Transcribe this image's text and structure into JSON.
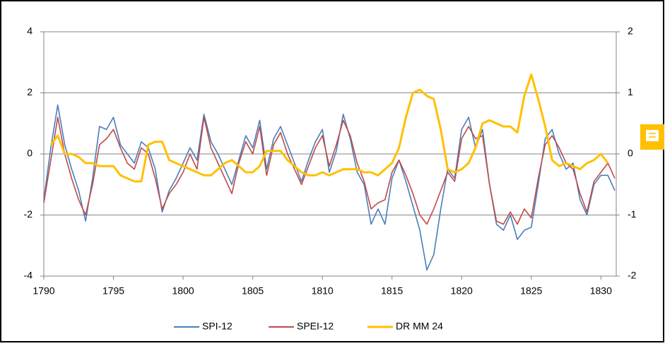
{
  "chart_data": {
    "type": "line",
    "x": [
      1790,
      1790.5,
      1791,
      1791.5,
      1792,
      1792.5,
      1793,
      1793.5,
      1794,
      1794.5,
      1795,
      1795.5,
      1796,
      1796.5,
      1797,
      1797.5,
      1798,
      1798.5,
      1799,
      1799.5,
      1800,
      1800.5,
      1801,
      1801.5,
      1802,
      1802.5,
      1803,
      1803.5,
      1804,
      1804.5,
      1805,
      1805.5,
      1806,
      1806.5,
      1807,
      1807.5,
      1808,
      1808.5,
      1809,
      1809.5,
      1810,
      1810.5,
      1811,
      1811.5,
      1812,
      1812.5,
      1813,
      1813.5,
      1814,
      1814.5,
      1815,
      1815.5,
      1816,
      1816.5,
      1817,
      1817.5,
      1818,
      1818.5,
      1819,
      1819.5,
      1820,
      1820.5,
      1821,
      1821.5,
      1822,
      1822.5,
      1823,
      1823.5,
      1824,
      1824.5,
      1825,
      1825.5,
      1826,
      1826.5,
      1827,
      1827.5,
      1828,
      1828.5,
      1829,
      1829.5,
      1830,
      1830.5,
      1831
    ],
    "series": [
      {
        "name": "SPI-12",
        "color": "#4a7ebb",
        "values": [
          -1.5,
          0.2,
          1.6,
          0.3,
          -0.5,
          -1.2,
          -2.2,
          -0.8,
          0.9,
          0.8,
          1.2,
          0.3,
          0.0,
          -0.3,
          0.4,
          0.2,
          -0.5,
          -1.9,
          -1.2,
          -0.8,
          -0.3,
          0.2,
          -0.2,
          1.3,
          0.4,
          0.0,
          -0.5,
          -1.0,
          -0.2,
          0.6,
          0.2,
          1.1,
          -0.5,
          0.5,
          0.9,
          0.3,
          -0.3,
          -0.9,
          -0.2,
          0.4,
          0.8,
          -0.6,
          0.1,
          1.3,
          0.5,
          -0.6,
          -1.0,
          -2.3,
          -1.8,
          -2.3,
          -0.8,
          -0.2,
          -0.9,
          -1.7,
          -2.5,
          -3.8,
          -3.3,
          -1.8,
          -0.5,
          -0.8,
          0.8,
          1.2,
          0.2,
          0.8,
          -1.0,
          -2.3,
          -2.5,
          -2.0,
          -2.8,
          -2.5,
          -2.4,
          -1.0,
          0.5,
          0.8,
          0.0,
          -0.5,
          -0.3,
          -1.5,
          -2.0,
          -1.0,
          -0.7,
          -0.7,
          -1.2
        ]
      },
      {
        "name": "SPEI-12",
        "color": "#be4b48",
        "values": [
          -1.6,
          -0.2,
          1.2,
          0.0,
          -0.8,
          -1.5,
          -2.0,
          -1.0,
          0.3,
          0.5,
          0.8,
          0.2,
          -0.3,
          -0.5,
          0.2,
          0.0,
          -0.8,
          -1.8,
          -1.3,
          -1.0,
          -0.6,
          0.0,
          -0.5,
          1.2,
          0.2,
          -0.3,
          -0.8,
          -1.3,
          -0.3,
          0.4,
          0.0,
          0.9,
          -0.7,
          0.3,
          0.7,
          0.0,
          -0.5,
          -1.0,
          -0.4,
          0.2,
          0.6,
          -0.4,
          0.3,
          1.1,
          0.6,
          -0.3,
          -0.9,
          -1.8,
          -1.6,
          -1.5,
          -0.6,
          -0.2,
          -0.7,
          -1.3,
          -2.0,
          -2.3,
          -1.8,
          -1.2,
          -0.6,
          -0.9,
          0.5,
          0.9,
          0.5,
          0.6,
          -1.0,
          -2.2,
          -2.3,
          -1.9,
          -2.3,
          -1.8,
          -2.1,
          -0.8,
          0.3,
          0.6,
          0.2,
          -0.3,
          -0.5,
          -1.3,
          -1.9,
          -0.9,
          -0.6,
          -0.3,
          -0.8
        ]
      },
      {
        "name": "DR MM 24",
        "color": "#ffc000",
        "axis": "y2",
        "values": [
          null,
          0.15,
          0.3,
          0.0,
          0.0,
          -0.05,
          -0.15,
          -0.15,
          -0.2,
          -0.2,
          -0.2,
          -0.35,
          -0.4,
          -0.45,
          -0.45,
          0.15,
          0.2,
          0.2,
          -0.1,
          -0.15,
          -0.2,
          -0.25,
          -0.3,
          -0.35,
          -0.35,
          -0.25,
          -0.15,
          -0.1,
          -0.2,
          -0.3,
          -0.3,
          -0.2,
          0.05,
          0.05,
          0.05,
          -0.1,
          -0.2,
          -0.3,
          -0.35,
          -0.35,
          -0.3,
          -0.35,
          -0.3,
          -0.25,
          -0.25,
          -0.25,
          -0.3,
          -0.3,
          -0.35,
          -0.25,
          -0.15,
          0.1,
          0.6,
          1.0,
          1.05,
          0.95,
          0.9,
          0.4,
          -0.25,
          -0.3,
          -0.25,
          -0.15,
          0.1,
          0.5,
          0.55,
          0.5,
          0.45,
          0.45,
          0.35,
          0.95,
          1.3,
          0.9,
          0.45,
          -0.1,
          -0.2,
          -0.15,
          -0.2,
          -0.25,
          -0.15,
          -0.1,
          0.0,
          -0.15,
          null
        ]
      }
    ],
    "xlim": [
      1790,
      1831.1
    ],
    "xticks": [
      1790,
      1795,
      1800,
      1805,
      1810,
      1815,
      1820,
      1825,
      1830
    ],
    "ylim": [
      -4,
      4
    ],
    "yticks": [
      -4,
      -2,
      0,
      2,
      4
    ],
    "y2lim": [
      -2,
      2
    ],
    "y2ticks": [
      -2,
      -1,
      0,
      1,
      2
    ],
    "grid": true,
    "legend": "bottom"
  }
}
